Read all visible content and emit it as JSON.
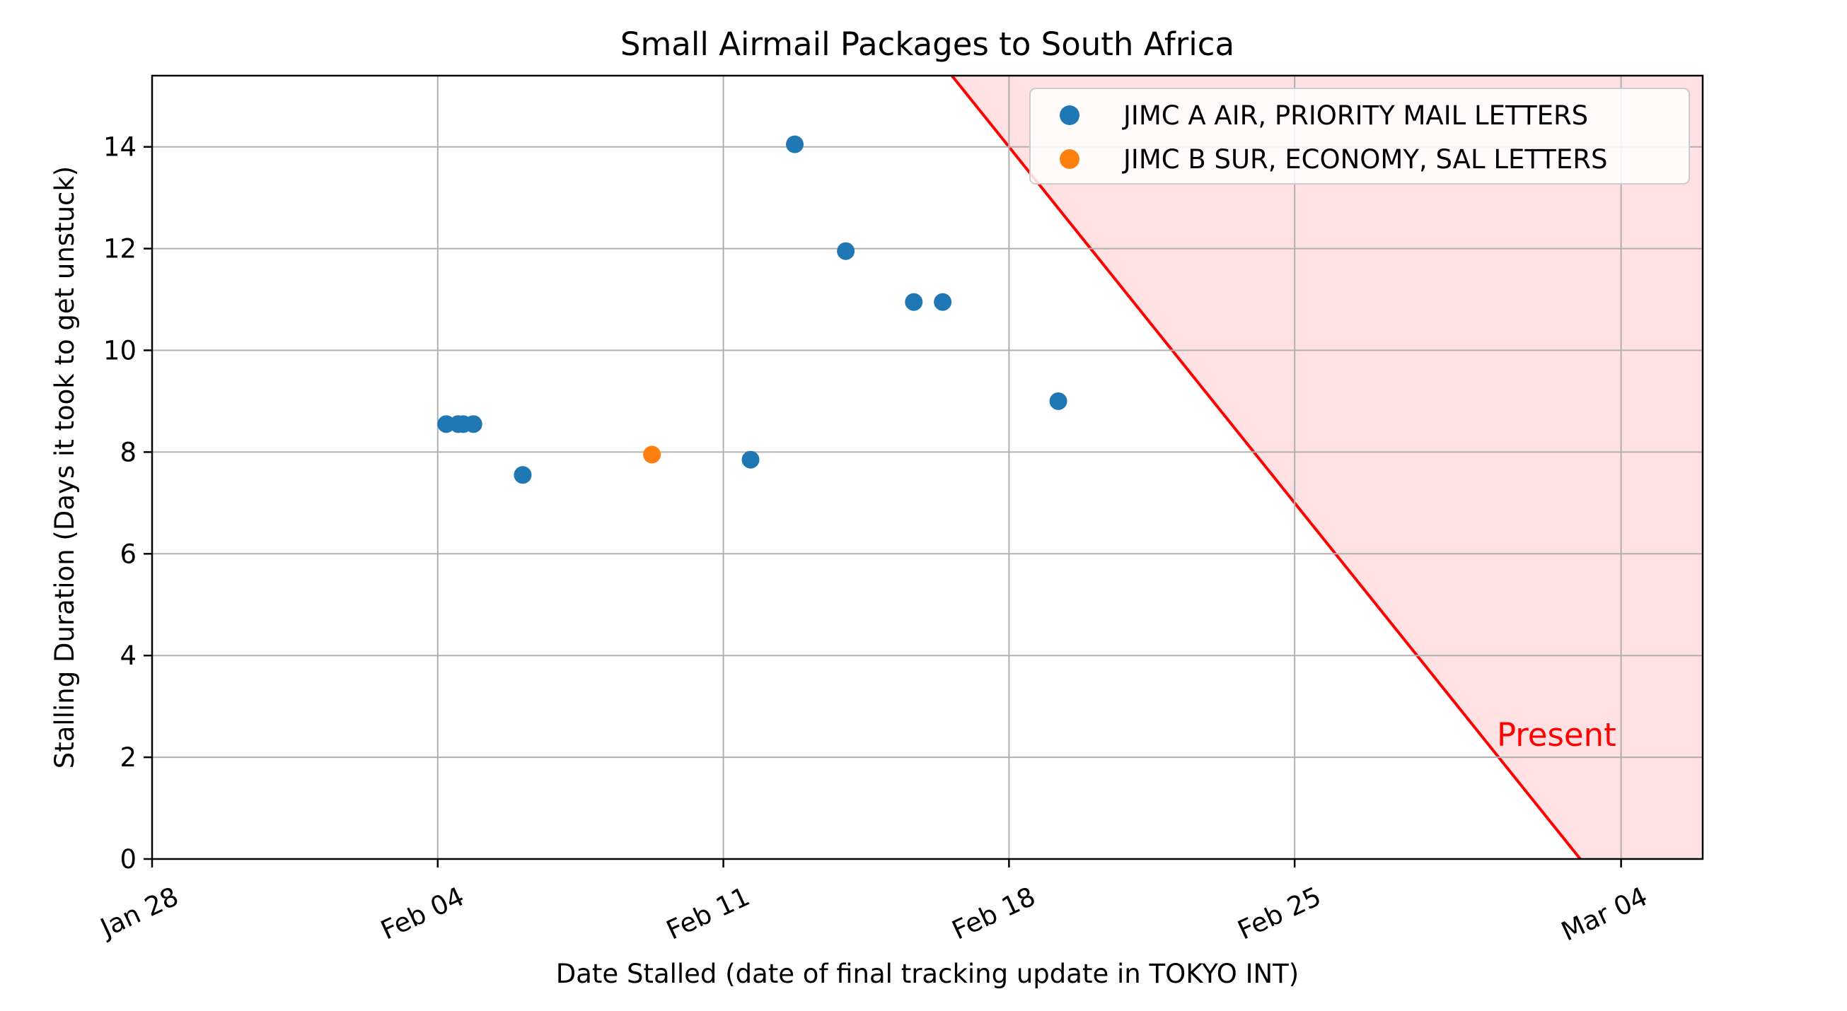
{
  "chart_data": {
    "type": "scatter",
    "title": "Small Airmail Packages to South Africa",
    "xlabel": "Date Stalled (date of final tracking update in TOKYO INT)",
    "ylabel": "Stalling Duration (Days it took to get unstuck)",
    "x_axis_type": "date",
    "xlim": [
      "2024-01-28",
      "2024-03-06"
    ],
    "ylim": [
      0,
      15.4
    ],
    "x_ticks": [
      {
        "date": "2024-01-28",
        "label": "Jan 28"
      },
      {
        "date": "2024-02-04",
        "label": "Feb 04"
      },
      {
        "date": "2024-02-11",
        "label": "Feb 11"
      },
      {
        "date": "2024-02-18",
        "label": "Feb 18"
      },
      {
        "date": "2024-02-25",
        "label": "Feb 25"
      },
      {
        "date": "2024-03-04",
        "label": "Mar 04"
      }
    ],
    "y_ticks": [
      0,
      2,
      4,
      6,
      8,
      10,
      12,
      14
    ],
    "grid": true,
    "legend_position": "top-right",
    "series": [
      {
        "name": "JIMC A AIR, PRIORITY MAIL LETTERS",
        "color": "#1f77b4",
        "points": [
          {
            "x": "2024-02-04 05:00",
            "y": 8.55
          },
          {
            "x": "2024-02-04 12:00",
            "y": 8.55
          },
          {
            "x": "2024-02-04 15:00",
            "y": 8.55
          },
          {
            "x": "2024-02-04 21:00",
            "y": 8.55
          },
          {
            "x": "2024-02-06 02:00",
            "y": 7.55
          },
          {
            "x": "2024-02-11 16:00",
            "y": 7.85
          },
          {
            "x": "2024-02-12 18:00",
            "y": 14.05
          },
          {
            "x": "2024-02-14 00:00",
            "y": 11.95
          },
          {
            "x": "2024-02-15 16:00",
            "y": 10.95
          },
          {
            "x": "2024-02-16 09:00",
            "y": 10.95
          },
          {
            "x": "2024-02-19 05:00",
            "y": 9.0
          }
        ]
      },
      {
        "name": "JIMC B SUR, ECONOMY, SAL LETTERS",
        "color": "#ff7f0e",
        "points": [
          {
            "x": "2024-02-09 06:00",
            "y": 7.95
          }
        ]
      }
    ],
    "present_line": {
      "label": "Present",
      "color": "#ff0000",
      "fill_color": "#ffe0e3",
      "x_at_zero": "2024-03-03"
    }
  }
}
